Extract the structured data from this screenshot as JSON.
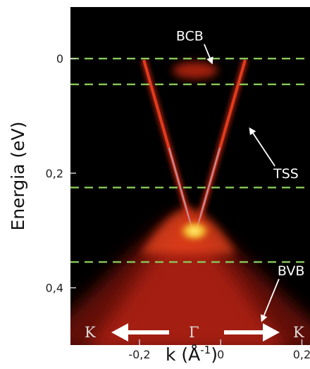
{
  "chart_data": {
    "type": "heatmap",
    "title": "",
    "xlabel": "k (Å",
    "xlabel_sup": "-1",
    "xlabel_close": ")",
    "ylabel": "Energia (eV)",
    "xlim": [
      -0.37,
      0.22
    ],
    "ylim": [
      -0.09,
      0.5
    ],
    "x_ticks": [
      {
        "value": -0.2,
        "label": "-0,2"
      },
      {
        "value": 0,
        "label": "0"
      },
      {
        "value": 0.2,
        "label": "0,2"
      }
    ],
    "y_ticks": [
      {
        "value": 0,
        "label": "0"
      },
      {
        "value": 0.2,
        "label": "0,2"
      },
      {
        "value": 0.4,
        "label": "0,4"
      }
    ],
    "dashed_lines_energy": [
      0,
      0.045,
      0.225,
      0.355
    ],
    "dirac_point": {
      "k": 0,
      "energy": 0.34
    },
    "tss_top": {
      "k_left": -0.12,
      "k_right": 0.12,
      "energy": 0.0
    },
    "annotations": [
      {
        "label": "BCB",
        "text_k": -0.11,
        "text_energy": -0.04,
        "arrow_k": -0.02,
        "arrow_energy": 0.01
      },
      {
        "label": "TSS",
        "text_k": 0.13,
        "text_energy": 0.2,
        "arrow_k": 0.07,
        "arrow_energy": 0.12
      },
      {
        "label": "BVB",
        "text_k": 0.14,
        "text_energy": 0.37,
        "arrow_k": 0.1,
        "arrow_energy": 0.46
      }
    ],
    "k_path": {
      "left": "K",
      "center": "Γ",
      "right": "K"
    },
    "colors": {
      "background": "#000000",
      "band": "#d42a12",
      "dashed": "#88c85a",
      "core": "#ffe64a"
    }
  }
}
